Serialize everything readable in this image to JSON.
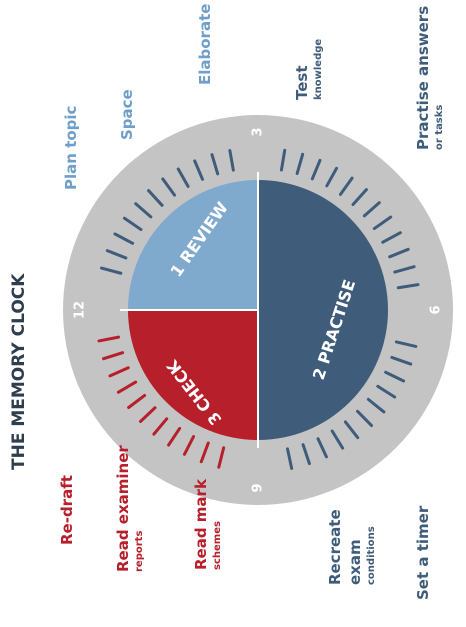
{
  "title": "THE MEMORY CLOCK",
  "clock": {
    "numbers": [
      "12",
      "3",
      "6",
      "9"
    ],
    "quadrants": [
      {
        "label": "1 REVIEW"
      },
      {
        "label": "2 PRACTISE"
      },
      {
        "label": "3 CHECK"
      }
    ]
  },
  "steps": [
    {
      "lines": [
        "Plan topic"
      ]
    },
    {
      "lines": [
        "Space"
      ]
    },
    {
      "lines": [
        "Elaborate"
      ]
    },
    {
      "lines": [
        "Test"
      ],
      "note": "knowledge"
    },
    {
      "lines": [
        "Practise answers"
      ],
      "note": "or tasks"
    },
    {
      "lines": [
        "Set a timer"
      ]
    },
    {
      "lines": [
        "Recreate",
        "exam"
      ],
      "note": "conditions"
    },
    {
      "lines": [
        "Read mark"
      ],
      "note": "schemes"
    },
    {
      "lines": [
        "Read examiner"
      ],
      "note": "reports"
    },
    {
      "lines": [
        "Re-draft"
      ]
    }
  ]
}
